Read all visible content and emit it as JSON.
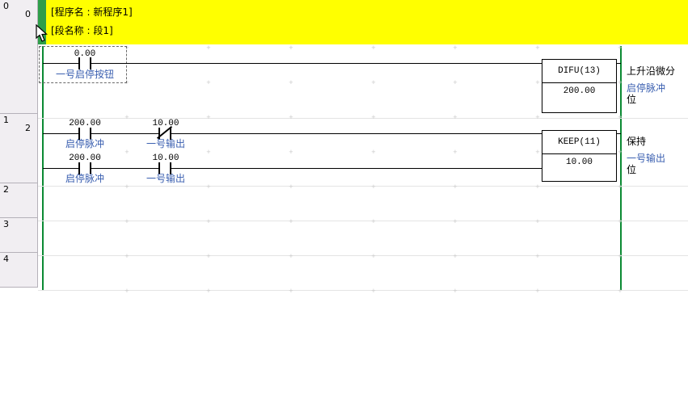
{
  "colors": {
    "header-yellow": "#ffff00",
    "header-green": "#2f9e4a",
    "rail-green": "#0b8a33",
    "label-blue": "#3a5fb0",
    "margin-bg": "#f1eef2",
    "margin-border": "#b5b1b9",
    "separator": "#e4e4e4",
    "grid-mark": "#cbcbcb"
  },
  "header": {
    "program_line": "[程序名 : 新程序1]",
    "section_line": "[段名称 : 段1]"
  },
  "margin": {
    "rungs": [
      {
        "number": "0",
        "step": "0"
      },
      {
        "number": "1",
        "step": "2"
      },
      {
        "number": "2",
        "step": ""
      },
      {
        "number": "3",
        "step": ""
      },
      {
        "number": "4",
        "step": ""
      }
    ]
  },
  "rung0": {
    "contact": {
      "address": "0.00",
      "label": "一号启停按钮",
      "type": "NO"
    },
    "instruction": {
      "name": "DIFU(13)",
      "operand": "200.00"
    },
    "comment": {
      "title": "上升沿微分",
      "symbol": "启停脉冲",
      "suffix": "位"
    }
  },
  "rung1": {
    "set": {
      "c1": {
        "address": "200.00",
        "label": "启停脉冲",
        "type": "NO"
      },
      "c2": {
        "address": "10.00",
        "label": "一号输出",
        "type": "NC"
      }
    },
    "reset": {
      "c1": {
        "address": "200.00",
        "label": "启停脉冲",
        "type": "NO"
      },
      "c2": {
        "address": "10.00",
        "label": "一号输出",
        "type": "NO"
      }
    },
    "instruction": {
      "name": "KEEP(11)",
      "operand": "10.00"
    },
    "comment": {
      "title": "保持",
      "symbol": "一号输出",
      "suffix": "位"
    }
  }
}
